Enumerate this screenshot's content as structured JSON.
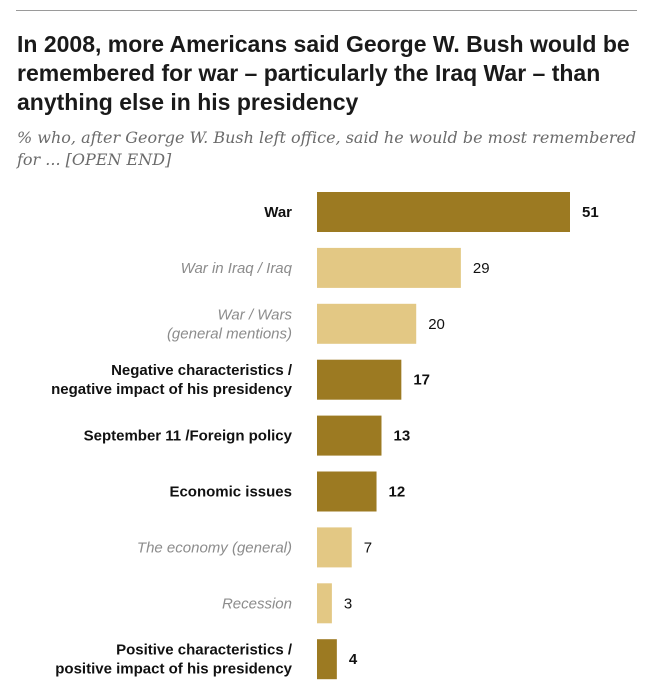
{
  "chart_data": {
    "type": "bar",
    "orientation": "horizontal",
    "title": "In 2008, more Americans said George W. Bush would be remembered for war – particularly the Iraq War – than anything else in his presidency",
    "subtitle": "% who, after George W. Bush left office, said he would be most remembered for ...  [OPEN END]",
    "categories": [
      [
        "War"
      ],
      [
        "War in Iraq / Iraq"
      ],
      [
        "War / Wars",
        "(general mentions)"
      ],
      [
        "Negative characteristics /",
        "negative impact of his presidency"
      ],
      [
        "September 11 /Foreign policy"
      ],
      [
        "Economic issues"
      ],
      [
        "The economy (general)"
      ],
      [
        "Recession"
      ],
      [
        "Positive characteristics /",
        "positive impact of his presidency"
      ]
    ],
    "values": [
      51,
      29,
      20,
      17,
      13,
      12,
      7,
      3,
      4
    ],
    "levels": [
      "major",
      "minor",
      "minor",
      "major",
      "major",
      "major",
      "minor",
      "minor",
      "major"
    ],
    "xlim": [
      0,
      51
    ],
    "colors": {
      "major": "#9c7a22",
      "minor": "#e3c884"
    }
  }
}
